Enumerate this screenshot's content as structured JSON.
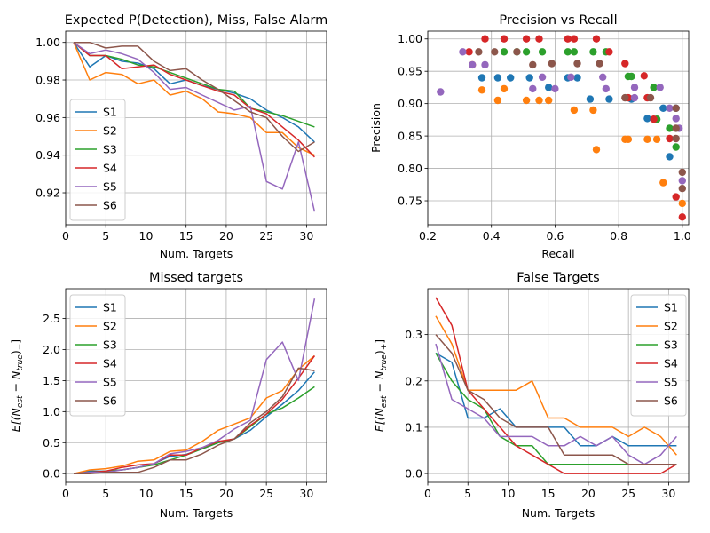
{
  "colors": {
    "S1": "#1f77b4",
    "S2": "#ff7f0e",
    "S3": "#2ca02c",
    "S4": "#d62728",
    "S5": "#9467bd",
    "S6": "#8c564b",
    "grid": "#b0b0b0"
  },
  "chart_data": [
    {
      "type": "line",
      "title": "Expected P(Detection), Miss, False Alarm",
      "xlabel": "Num. Targets",
      "ylabel": "",
      "xlim": [
        0,
        32.5
      ],
      "ylim": [
        0.903,
        1.006
      ],
      "xticks": [
        0,
        5,
        10,
        15,
        20,
        25,
        30
      ],
      "yticks": [
        0.92,
        0.94,
        0.96,
        0.98,
        1.0
      ],
      "ytick_labels": [
        "0.92",
        "0.94",
        "0.96",
        "0.98",
        "1.00"
      ],
      "grid": true,
      "legend": "center-left",
      "x": [
        1,
        3,
        5,
        7,
        9,
        11,
        13,
        15,
        17,
        19,
        21,
        23,
        25,
        27,
        29,
        31
      ],
      "series": [
        {
          "name": "S1",
          "values": [
            1.0,
            0.987,
            0.993,
            0.99,
            0.989,
            0.986,
            0.978,
            0.98,
            0.977,
            0.975,
            0.973,
            0.97,
            0.964,
            0.96,
            0.955,
            0.947
          ]
        },
        {
          "name": "S2",
          "values": [
            1.0,
            0.98,
            0.984,
            0.983,
            0.978,
            0.98,
            0.972,
            0.974,
            0.97,
            0.963,
            0.962,
            0.96,
            0.952,
            0.952,
            0.944,
            0.94
          ]
        },
        {
          "name": "S3",
          "values": [
            1.0,
            0.993,
            0.993,
            0.991,
            0.988,
            0.987,
            0.984,
            0.981,
            0.978,
            0.975,
            0.974,
            0.965,
            0.963,
            0.961,
            0.958,
            0.955
          ]
        },
        {
          "name": "S4",
          "values": [
            1.0,
            0.993,
            0.993,
            0.986,
            0.987,
            0.988,
            0.983,
            0.98,
            0.977,
            0.974,
            0.972,
            0.965,
            0.962,
            0.955,
            0.948,
            0.939
          ]
        },
        {
          "name": "S5",
          "values": [
            1.0,
            0.994,
            0.996,
            0.994,
            0.991,
            0.984,
            0.975,
            0.976,
            0.972,
            0.968,
            0.964,
            0.966,
            0.926,
            0.922,
            0.947,
            0.91
          ]
        },
        {
          "name": "S6",
          "values": [
            1.0,
            1.0,
            0.997,
            0.998,
            0.998,
            0.99,
            0.985,
            0.986,
            0.98,
            0.975,
            0.969,
            0.963,
            0.96,
            0.95,
            0.942,
            0.947
          ]
        }
      ]
    },
    {
      "type": "scatter",
      "title": "Precision vs Recall",
      "xlabel": "Recall",
      "ylabel": "Precision",
      "xlim": [
        0.2,
        1.02
      ],
      "ylim": [
        0.713,
        1.012
      ],
      "xticks": [
        0.2,
        0.4,
        0.6,
        0.8,
        1.0
      ],
      "xtick_labels": [
        "0.2",
        "0.4",
        "0.6",
        "0.8",
        "1.0"
      ],
      "yticks": [
        0.75,
        0.8,
        0.85,
        0.9,
        0.95,
        1.0
      ],
      "ytick_labels": [
        "0.75",
        "0.80",
        "0.85",
        "0.90",
        "0.95",
        "1.00"
      ],
      "grid": true,
      "series": [
        {
          "name": "S1",
          "points": [
            [
              0.37,
              0.94
            ],
            [
              0.42,
              0.94
            ],
            [
              0.46,
              0.94
            ],
            [
              0.52,
              0.94
            ],
            [
              0.58,
              0.925
            ],
            [
              0.64,
              0.94
            ],
            [
              0.67,
              0.94
            ],
            [
              0.71,
              0.907
            ],
            [
              0.77,
              0.907
            ],
            [
              0.84,
              0.907
            ],
            [
              0.89,
              0.877
            ],
            [
              0.94,
              0.893
            ],
            [
              0.96,
              0.818
            ],
            [
              0.98,
              0.893
            ]
          ]
        },
        {
          "name": "S2",
          "points": [
            [
              0.34,
              0.96
            ],
            [
              0.37,
              0.921
            ],
            [
              0.42,
              0.905
            ],
            [
              0.44,
              0.923
            ],
            [
              0.51,
              0.905
            ],
            [
              0.55,
              0.905
            ],
            [
              0.58,
              0.905
            ],
            [
              0.66,
              0.89
            ],
            [
              0.72,
              0.89
            ],
            [
              0.73,
              0.829
            ],
            [
              0.82,
              0.845
            ],
            [
              0.83,
              0.845
            ],
            [
              0.89,
              0.845
            ],
            [
              0.92,
              0.845
            ],
            [
              0.94,
              0.778
            ],
            [
              1.0,
              0.746
            ]
          ]
        },
        {
          "name": "S3",
          "points": [
            [
              0.44,
              0.98
            ],
            [
              0.48,
              0.98
            ],
            [
              0.51,
              0.98
            ],
            [
              0.56,
              0.98
            ],
            [
              0.64,
              0.98
            ],
            [
              0.66,
              0.98
            ],
            [
              0.72,
              0.98
            ],
            [
              0.76,
              0.98
            ],
            [
              0.83,
              0.942
            ],
            [
              0.84,
              0.942
            ],
            [
              0.91,
              0.925
            ],
            [
              0.92,
              0.876
            ],
            [
              0.96,
              0.862
            ],
            [
              0.98,
              0.833
            ]
          ]
        },
        {
          "name": "S4",
          "points": [
            [
              0.33,
              0.98
            ],
            [
              0.38,
              1.0
            ],
            [
              0.44,
              1.0
            ],
            [
              0.51,
              1.0
            ],
            [
              0.55,
              1.0
            ],
            [
              0.64,
              1.0
            ],
            [
              0.66,
              1.0
            ],
            [
              0.73,
              1.0
            ],
            [
              0.77,
              0.98
            ],
            [
              0.82,
              0.962
            ],
            [
              0.83,
              0.909
            ],
            [
              0.88,
              0.943
            ],
            [
              0.89,
              0.909
            ],
            [
              0.91,
              0.876
            ],
            [
              0.96,
              0.846
            ],
            [
              0.98,
              0.756
            ],
            [
              1.0,
              0.725
            ]
          ]
        },
        {
          "name": "S5",
          "points": [
            [
              0.24,
              0.918
            ],
            [
              0.31,
              0.98
            ],
            [
              0.34,
              0.96
            ],
            [
              0.38,
              0.96
            ],
            [
              0.53,
              0.923
            ],
            [
              0.56,
              0.941
            ],
            [
              0.6,
              0.923
            ],
            [
              0.65,
              0.941
            ],
            [
              0.75,
              0.941
            ],
            [
              0.76,
              0.923
            ],
            [
              0.85,
              0.925
            ],
            [
              0.85,
              0.909
            ],
            [
              0.93,
              0.925
            ],
            [
              0.96,
              0.893
            ],
            [
              0.98,
              0.877
            ],
            [
              0.99,
              0.862
            ],
            [
              1.0,
              0.781
            ]
          ]
        },
        {
          "name": "S6",
          "points": [
            [
              0.36,
              0.98
            ],
            [
              0.41,
              0.98
            ],
            [
              0.48,
              0.98
            ],
            [
              0.53,
              0.96
            ],
            [
              0.59,
              0.962
            ],
            [
              0.67,
              0.962
            ],
            [
              0.74,
              0.962
            ],
            [
              0.82,
              0.909
            ],
            [
              0.9,
              0.909
            ],
            [
              0.98,
              0.893
            ],
            [
              0.98,
              0.862
            ],
            [
              0.98,
              0.846
            ],
            [
              1.0,
              0.794
            ],
            [
              1.0,
              0.769
            ]
          ]
        }
      ]
    },
    {
      "type": "line",
      "title": "Missed targets",
      "xlabel": "Num. Targets",
      "ylabel_main": "E[(N",
      "ylabel_sub1": "est",
      "ylabel_mid": " − N",
      "ylabel_sub2": "true",
      "ylabel_end": ")",
      "ylabel_sign": "−",
      "ylabel_close": "]",
      "xlim": [
        0,
        32.5
      ],
      "ylim": [
        -0.14,
        2.98
      ],
      "xticks": [
        0,
        5,
        10,
        15,
        20,
        25,
        30
      ],
      "yticks": [
        0.0,
        0.5,
        1.0,
        1.5,
        2.0,
        2.5
      ],
      "ytick_labels": [
        "0.0",
        "0.5",
        "1.0",
        "1.5",
        "2.0",
        "2.5"
      ],
      "grid": true,
      "legend": "top-left",
      "x": [
        1,
        3,
        5,
        7,
        9,
        11,
        13,
        15,
        17,
        19,
        21,
        23,
        25,
        27,
        29,
        31
      ],
      "series": [
        {
          "name": "S1",
          "values": [
            0.0,
            0.04,
            0.04,
            0.06,
            0.1,
            0.16,
            0.28,
            0.31,
            0.4,
            0.5,
            0.56,
            0.7,
            0.92,
            1.12,
            1.34,
            1.64
          ]
        },
        {
          "name": "S2",
          "values": [
            0.0,
            0.06,
            0.08,
            0.12,
            0.2,
            0.22,
            0.36,
            0.38,
            0.52,
            0.7,
            0.8,
            0.9,
            1.22,
            1.34,
            1.68,
            1.9
          ]
        },
        {
          "name": "S3",
          "values": [
            0.0,
            0.02,
            0.04,
            0.06,
            0.1,
            0.14,
            0.22,
            0.3,
            0.4,
            0.5,
            0.56,
            0.76,
            0.96,
            1.06,
            1.22,
            1.4
          ]
        },
        {
          "name": "S4",
          "values": [
            0.0,
            0.02,
            0.04,
            0.1,
            0.14,
            0.16,
            0.3,
            0.3,
            0.42,
            0.52,
            0.56,
            0.78,
            0.96,
            1.2,
            1.54,
            1.9
          ]
        },
        {
          "name": "S5",
          "values": [
            0.0,
            0.02,
            0.02,
            0.06,
            0.1,
            0.16,
            0.32,
            0.36,
            0.42,
            0.54,
            0.72,
            0.86,
            1.84,
            2.12,
            1.5,
            2.82
          ]
        },
        {
          "name": "S6",
          "values": [
            0.0,
            0.0,
            0.02,
            0.02,
            0.02,
            0.1,
            0.22,
            0.22,
            0.32,
            0.46,
            0.56,
            0.82,
            1.0,
            1.24,
            1.7,
            1.66
          ]
        }
      ]
    },
    {
      "type": "line",
      "title": "False Targets",
      "xlabel": "Num. Targets",
      "ylabel_main": "E[(N",
      "ylabel_sub1": "est",
      "ylabel_mid": " − N",
      "ylabel_sub2": "true",
      "ylabel_end": ")",
      "ylabel_sign": "+",
      "ylabel_close": "]",
      "xlim": [
        0,
        32.5
      ],
      "ylim": [
        -0.019,
        0.399
      ],
      "xticks": [
        0,
        5,
        10,
        15,
        20,
        25,
        30
      ],
      "yticks": [
        0.0,
        0.1,
        0.2,
        0.3
      ],
      "ytick_labels": [
        "0.0",
        "0.1",
        "0.2",
        "0.3"
      ],
      "grid": true,
      "legend": "top-right",
      "x": [
        1,
        3,
        5,
        7,
        9,
        11,
        13,
        15,
        17,
        19,
        21,
        23,
        25,
        27,
        29,
        31
      ],
      "series": [
        {
          "name": "S1",
          "values": [
            0.26,
            0.24,
            0.12,
            0.12,
            0.14,
            0.1,
            0.1,
            0.1,
            0.1,
            0.06,
            0.06,
            0.08,
            0.06,
            0.06,
            0.06,
            0.06
          ]
        },
        {
          "name": "S2",
          "values": [
            0.34,
            0.28,
            0.18,
            0.18,
            0.18,
            0.18,
            0.2,
            0.12,
            0.12,
            0.1,
            0.1,
            0.1,
            0.08,
            0.1,
            0.08,
            0.04
          ]
        },
        {
          "name": "S3",
          "values": [
            0.26,
            0.2,
            0.16,
            0.14,
            0.08,
            0.06,
            0.06,
            0.02,
            0.02,
            0.02,
            0.02,
            0.02,
            0.02,
            0.02,
            0.02,
            0.02
          ]
        },
        {
          "name": "S4",
          "values": [
            0.38,
            0.32,
            0.18,
            0.14,
            0.1,
            0.06,
            0.04,
            0.02,
            0.0,
            0.0,
            0.0,
            0.0,
            0.0,
            0.0,
            0.0,
            0.02
          ]
        },
        {
          "name": "S5",
          "values": [
            0.28,
            0.16,
            0.14,
            0.12,
            0.08,
            0.08,
            0.08,
            0.06,
            0.06,
            0.08,
            0.06,
            0.08,
            0.04,
            0.02,
            0.04,
            0.08
          ]
        },
        {
          "name": "S6",
          "values": [
            0.3,
            0.26,
            0.18,
            0.16,
            0.12,
            0.1,
            0.1,
            0.1,
            0.04,
            0.04,
            0.04,
            0.04,
            0.02,
            0.02,
            0.02,
            0.02
          ]
        }
      ]
    }
  ]
}
